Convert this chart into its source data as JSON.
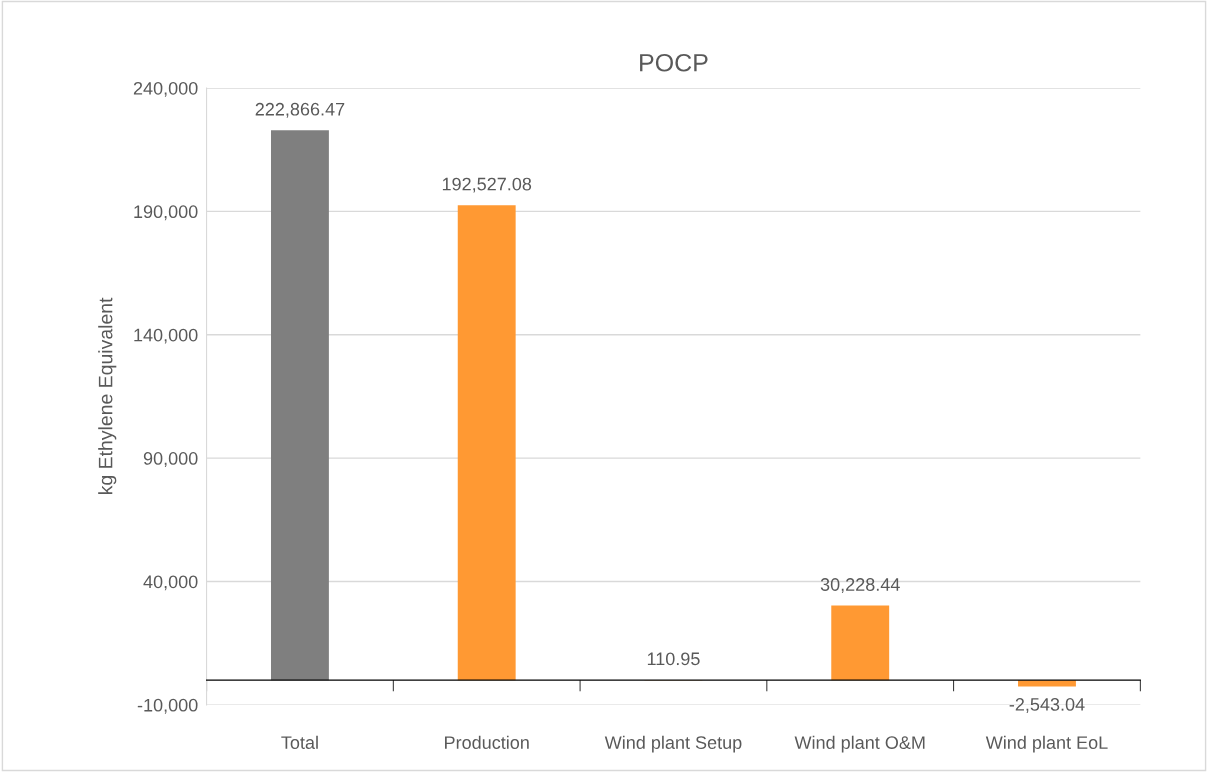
{
  "chart_data": {
    "type": "bar",
    "title": "POCP",
    "ylabel": "kg Ethylene Equivalent",
    "categories": [
      "Total",
      "Production",
      "Wind plant Setup",
      "Wind plant O&M",
      "Wind plant EoL"
    ],
    "values": [
      222866.47,
      192527.08,
      110.95,
      30228.44,
      -2543.04
    ],
    "colors": [
      "#7f7f7f",
      "#ff9933",
      "#ff9933",
      "#ff9933",
      "#ff9933"
    ],
    "value_labels": [
      "222,866.47",
      "192,527.08",
      "110.95",
      "30,228.44",
      "-2,543.04"
    ],
    "ylim": [
      -10000,
      240000
    ],
    "yticks": [
      {
        "value": -10000,
        "label": "-10,000"
      },
      {
        "value": 40000,
        "label": "40,000"
      },
      {
        "value": 90000,
        "label": "90,000"
      },
      {
        "value": 140000,
        "label": "140,000"
      },
      {
        "value": 190000,
        "label": "190,000"
      },
      {
        "value": 240000,
        "label": "240,000"
      }
    ],
    "grid": "y",
    "legend": false
  }
}
